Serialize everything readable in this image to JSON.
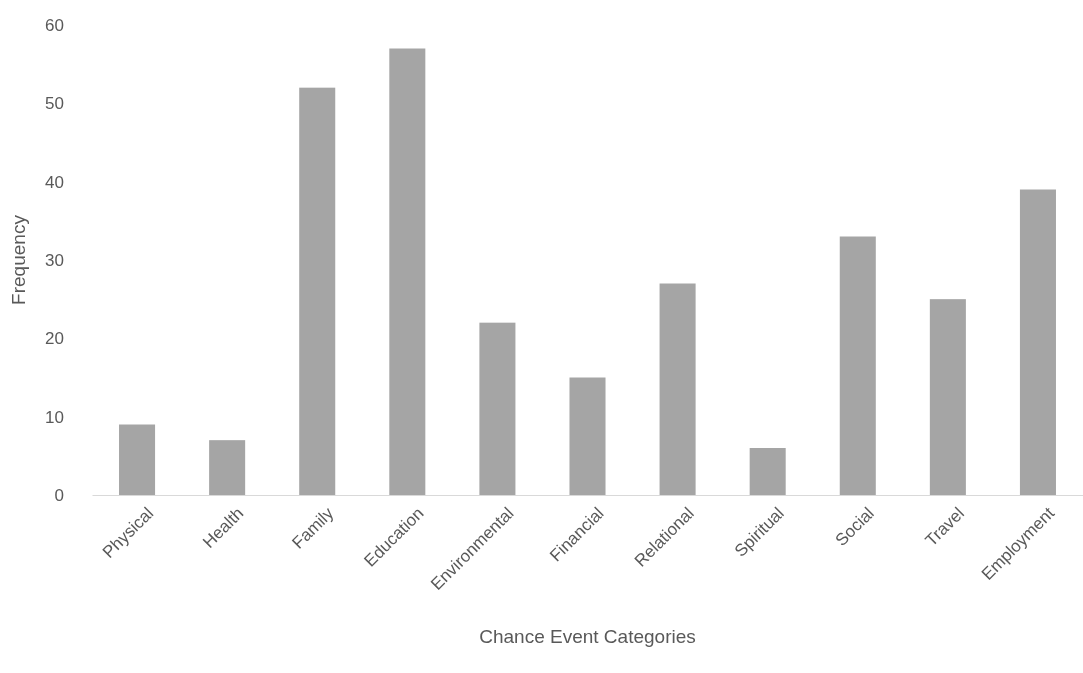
{
  "chart_data": {
    "type": "bar",
    "xlabel": "Chance Event Categories",
    "ylabel": "Frequency",
    "categories": [
      "Physical",
      "Health",
      "Family",
      "Education",
      "Environmental",
      "Financial",
      "Relational",
      "Spiritual",
      "Social",
      "Travel",
      "Employment"
    ],
    "values": [
      9,
      7,
      52,
      57,
      22,
      15,
      27,
      6,
      33,
      25,
      39
    ],
    "color": "#a5a5a5",
    "ylim": [
      0,
      60
    ],
    "yticks": [
      0,
      10,
      20,
      30,
      40,
      50,
      60
    ],
    "grid": false
  }
}
